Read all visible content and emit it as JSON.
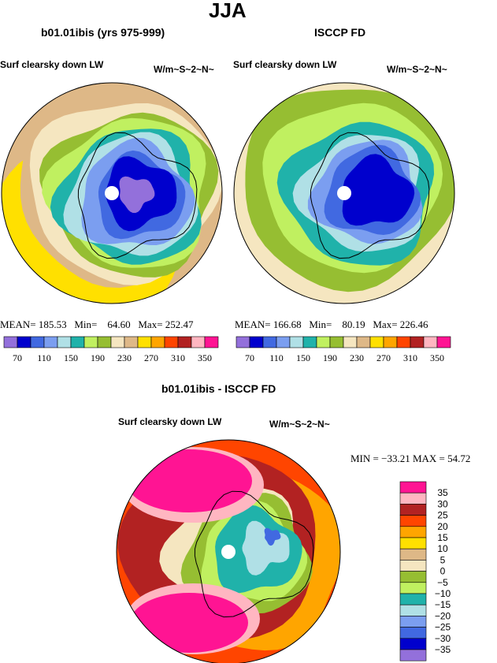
{
  "chart_data": [
    {
      "type": "contour-map",
      "projection": "south polar stereographic",
      "title": "b01.01ibis (yrs 975-999)",
      "left_label": "Surf clearsky down LW",
      "units": "W/m~S~2~N~",
      "stats": {
        "mean_label": "MEAN=",
        "mean": "185.53",
        "min_label": "Min=",
        "min": "64.60",
        "max_label": "Max=",
        "max": "252.47"
      },
      "levels": [
        70,
        90,
        110,
        130,
        150,
        170,
        190,
        210,
        230,
        250,
        270,
        290,
        310,
        330,
        350
      ],
      "tick_labels": [
        "70",
        "110",
        "150",
        "190",
        "230",
        "270",
        "310",
        "350"
      ]
    },
    {
      "type": "contour-map",
      "projection": "south polar stereographic",
      "title": "ISCCP FD",
      "left_label": "Surf clearsky down LW",
      "units": "W/m~S~2~N~",
      "stats": {
        "mean_label": "MEAN=",
        "mean": "166.68",
        "min_label": "Min=",
        "min": "80.19",
        "max_label": "Max=",
        "max": "226.46"
      },
      "levels": [
        70,
        90,
        110,
        130,
        150,
        170,
        190,
        210,
        230,
        250,
        270,
        290,
        310,
        330,
        350
      ],
      "tick_labels": [
        "70",
        "110",
        "150",
        "190",
        "230",
        "270",
        "310",
        "350"
      ]
    },
    {
      "type": "contour-map",
      "projection": "south polar stereographic",
      "title": "b01.01ibis - ISCCP FD",
      "left_label": "Surf clearsky down LW",
      "units": "W/m~S~2~N~",
      "stats_text": "MIN = −33.21  MAX =  54.72",
      "levels": [
        -35,
        -30,
        -25,
        -20,
        -15,
        -10,
        -5,
        0,
        5,
        10,
        15,
        20,
        25,
        30,
        35
      ],
      "tick_labels": [
        "−35",
        "−30",
        "−25",
        "−20",
        "−15",
        "−10",
        "−5",
        "0",
        "5",
        "10",
        "15",
        "20",
        "25",
        "30",
        "35"
      ]
    }
  ],
  "main_title": "JJA",
  "palette": [
    "#9370db",
    "#0000cd",
    "#4169e1",
    "#7b9ef0",
    "#b0e0e6",
    "#20b2aa",
    "#c0f060",
    "#96be32",
    "#f5e6c0",
    "#deb887",
    "#ffe000",
    "#ffa500",
    "#ff4500",
    "#b22222",
    "#ffb6c1",
    "#ff1493"
  ]
}
